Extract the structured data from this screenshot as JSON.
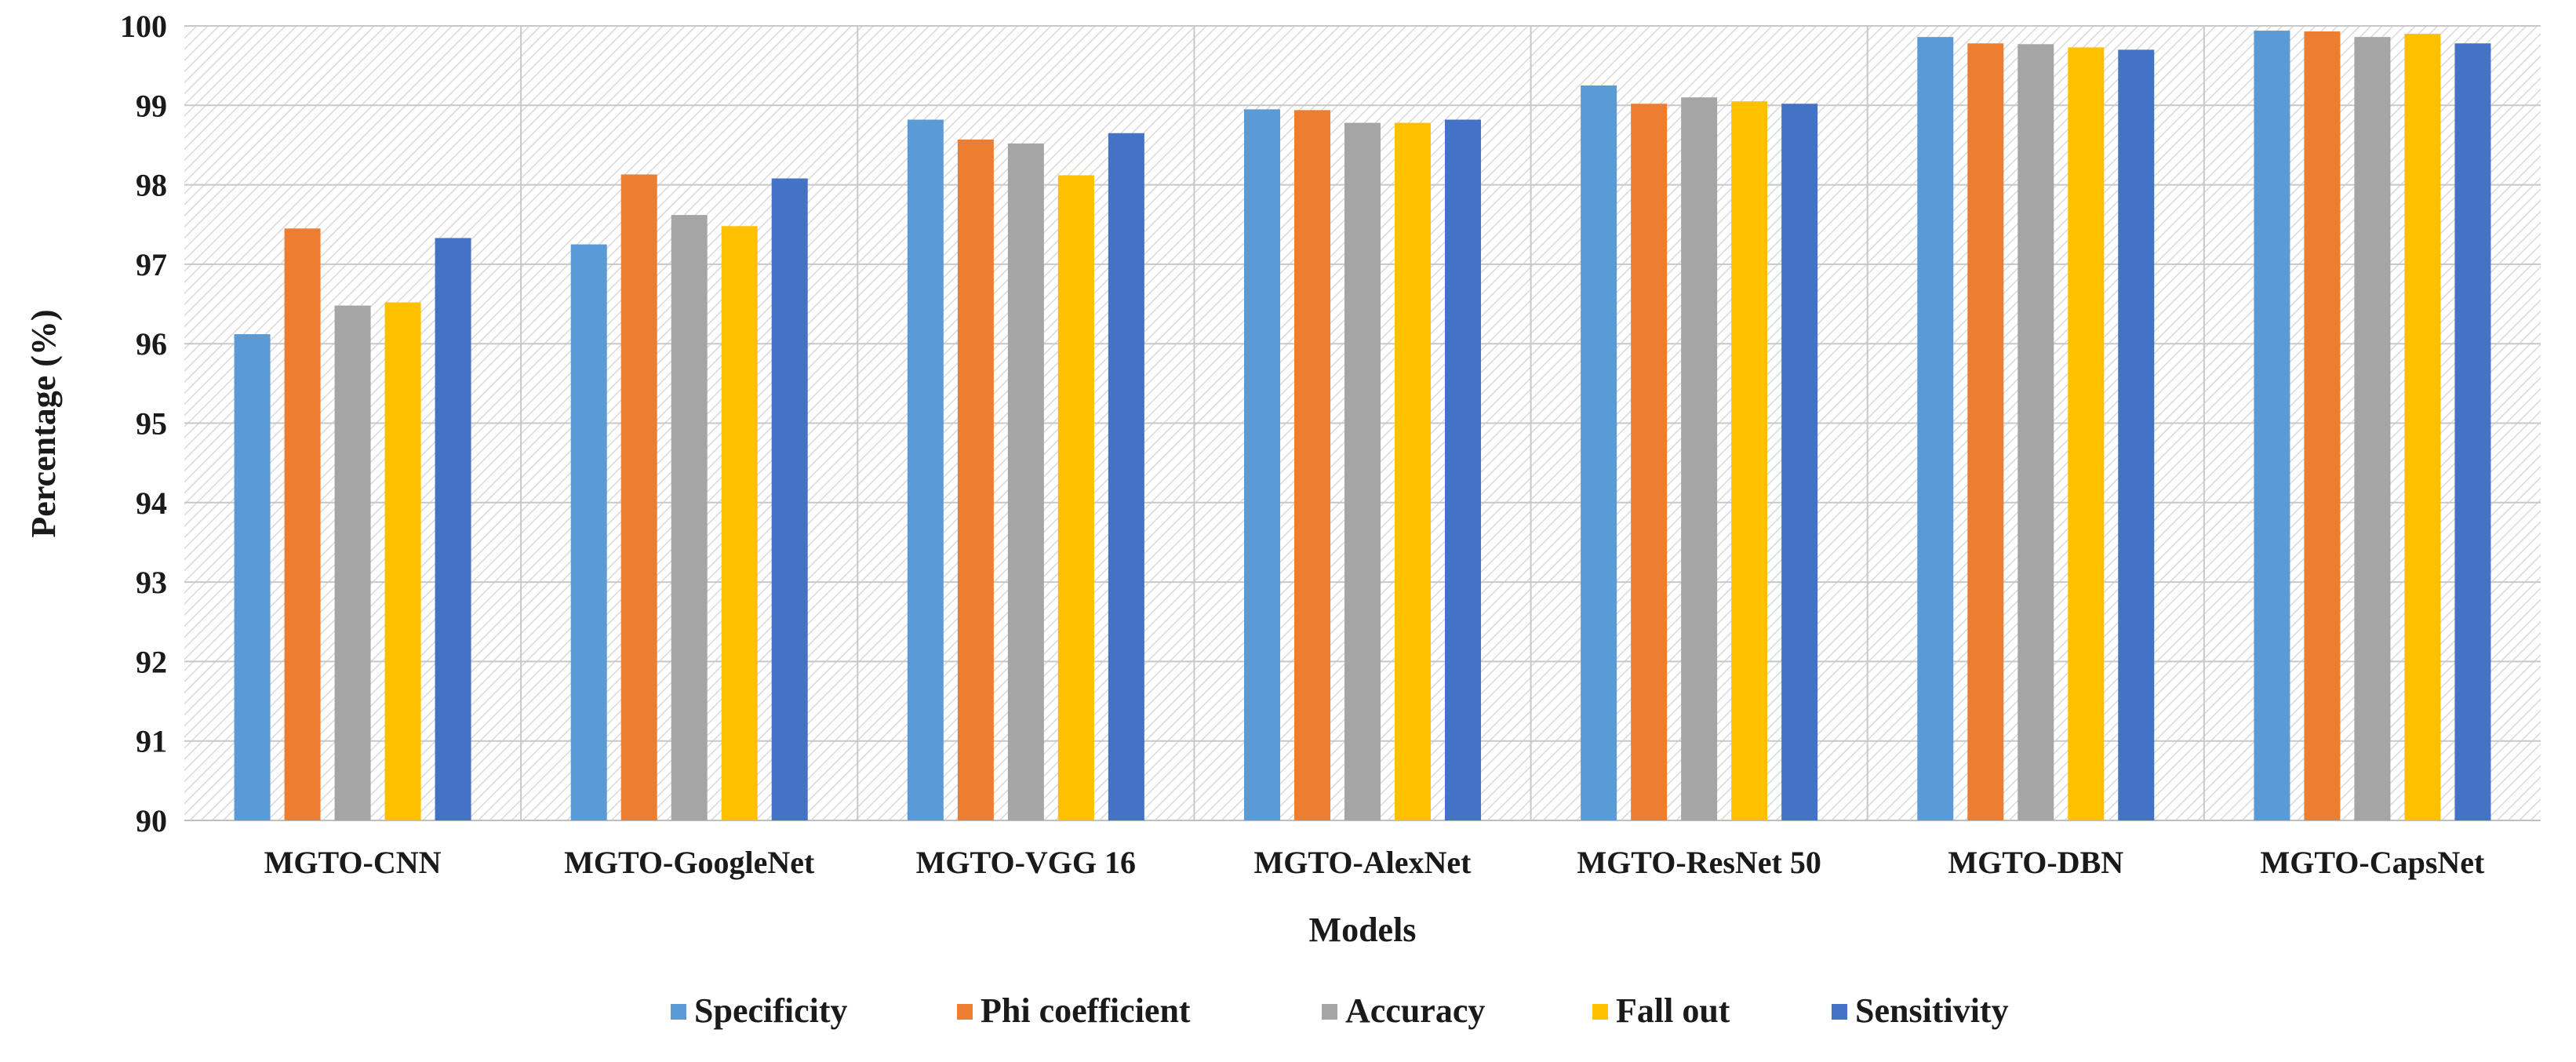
{
  "chart_data": {
    "type": "bar",
    "title": "",
    "xlabel": "Models",
    "ylabel": "Percentage (%)",
    "ylim": [
      90,
      100
    ],
    "yticks": [
      90,
      91,
      92,
      93,
      94,
      95,
      96,
      97,
      98,
      99,
      100
    ],
    "grid": true,
    "legend_position": "bottom",
    "categories": [
      "MGTO-CNN",
      "MGTO-GoogleNet",
      "MGTO-VGG 16",
      "MGTO-AlexNet",
      "MGTO-ResNet 50",
      "MGTO-DBN",
      "MGTO-CapsNet"
    ],
    "series": [
      {
        "name": "Specificity",
        "color": "#5B9BD5",
        "values": [
          96.12,
          97.25,
          98.82,
          98.95,
          99.25,
          99.86,
          99.94
        ]
      },
      {
        "name": "Phi coefficient",
        "color": "#ED7D31",
        "values": [
          97.45,
          98.13,
          98.57,
          98.94,
          99.02,
          99.78,
          99.93
        ]
      },
      {
        "name": "Accuracy",
        "color": "#A5A5A5",
        "values": [
          96.48,
          97.62,
          98.52,
          98.78,
          99.1,
          99.77,
          99.86
        ]
      },
      {
        "name": "Fall out",
        "color": "#FFC000",
        "values": [
          96.52,
          97.48,
          98.12,
          98.78,
          99.05,
          99.73,
          99.9
        ]
      },
      {
        "name": "Sensitivity",
        "color": "#4472C4",
        "values": [
          97.33,
          98.08,
          98.65,
          98.82,
          99.02,
          99.7,
          99.78
        ]
      }
    ]
  }
}
